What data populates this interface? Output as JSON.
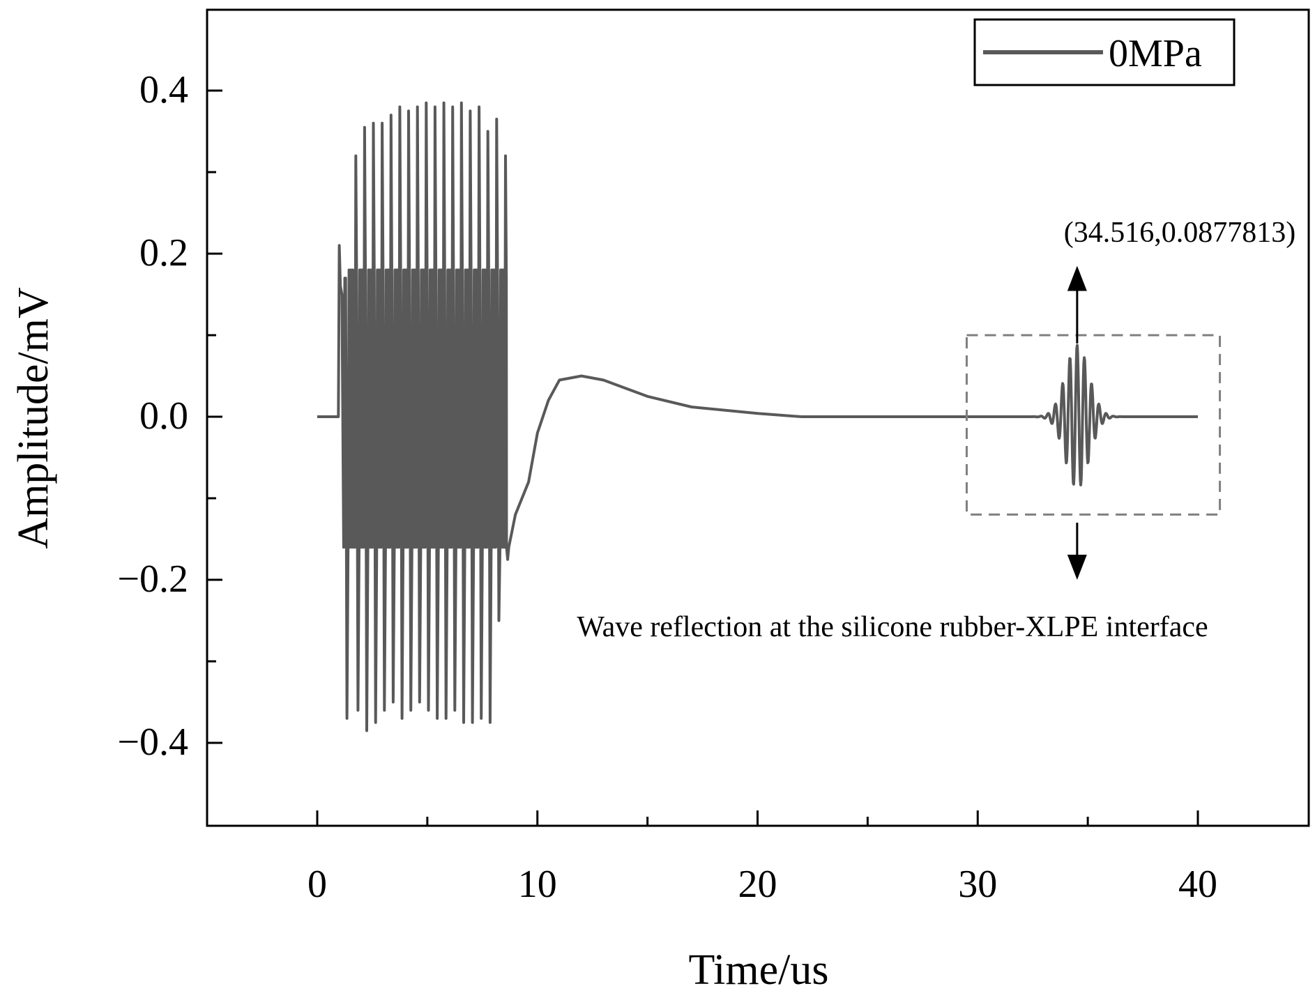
{
  "colors": {
    "signal": "#595959",
    "axis": "#000000",
    "box": "#7f7f7f",
    "background": "#ffffff"
  },
  "legend": {
    "label": "0MPa",
    "placement": "top-right"
  },
  "annotations": {
    "peak_label": "(34.516,0.0877813)",
    "reflection_label": "Wave reflection at the silicone rubber-XLPE interface"
  },
  "chart_data": {
    "type": "line",
    "title": "",
    "xlabel": "Time/us",
    "ylabel": "Amplitude/mV",
    "xlim": [
      -5,
      45
    ],
    "ylim": [
      -0.5,
      0.5
    ],
    "xticks": [
      0,
      10,
      20,
      30,
      40
    ],
    "xtick_labels": [
      "0",
      "10",
      "20",
      "30",
      "40"
    ],
    "yticks": [
      -0.4,
      -0.2,
      0.0,
      0.2,
      0.4
    ],
    "ytick_labels": [
      "−0.4",
      "−0.2",
      "0.0",
      "0.2",
      "0.4"
    ],
    "grid": false,
    "series": [
      {
        "name": "0MPa",
        "description": "Excitation burst 1-8.5 us (spikes to about +/-0.38 mV, dense band +/-0.16 mV), slow recovery hump peaking about 0.05 mV at 12 us, decay to 0 by about 22 us, reflected wave packet centred at 34.516 us",
        "burst_spike_times": [
          1.0,
          1.25,
          1.75,
          2.15,
          2.55,
          2.95,
          3.35,
          3.75,
          4.15,
          4.55,
          4.95,
          5.35,
          5.75,
          6.15,
          6.55,
          6.95,
          7.35,
          7.75,
          8.15,
          8.55
        ],
        "burst_positive_peaks": [
          0.21,
          0.17,
          0.32,
          0.355,
          0.36,
          0.36,
          0.37,
          0.38,
          0.375,
          0.38,
          0.385,
          0.38,
          0.385,
          0.38,
          0.385,
          0.375,
          0.38,
          0.35,
          0.365,
          0.32
        ],
        "burst_negative_peaks": [
          0.0,
          -0.37,
          -0.36,
          -0.385,
          -0.375,
          -0.36,
          -0.35,
          -0.37,
          -0.36,
          -0.35,
          -0.36,
          -0.37,
          -0.37,
          -0.36,
          -0.375,
          -0.375,
          -0.37,
          -0.375,
          -0.25,
          -0.175
        ],
        "burst_band": [
          -0.16,
          0.18
        ],
        "recovery_points": [
          [
            8.6,
            -0.16
          ],
          [
            9.0,
            -0.12
          ],
          [
            9.6,
            -0.08
          ],
          [
            10.0,
            -0.02
          ],
          [
            10.5,
            0.02
          ],
          [
            11.0,
            0.045
          ],
          [
            12.0,
            0.05
          ],
          [
            13.0,
            0.045
          ],
          [
            15.0,
            0.025
          ],
          [
            17.0,
            0.012
          ],
          [
            20.0,
            0.004
          ],
          [
            22.0,
            0.0
          ],
          [
            40.0,
            0.0
          ]
        ],
        "reflection_packet": {
          "center": 34.516,
          "peak": 0.0877813,
          "trough": -0.088,
          "start": 32.0,
          "end": 37.0,
          "period": 0.33
        }
      }
    ],
    "highlight_box": {
      "x": [
        29.5,
        41.0
      ],
      "y": [
        -0.12,
        0.1
      ]
    },
    "arrows": [
      {
        "from": [
          34.516,
          0.09
        ],
        "to": [
          34.516,
          0.185
        ]
      },
      {
        "from": [
          34.516,
          -0.13
        ],
        "to": [
          34.516,
          -0.2
        ]
      }
    ]
  }
}
